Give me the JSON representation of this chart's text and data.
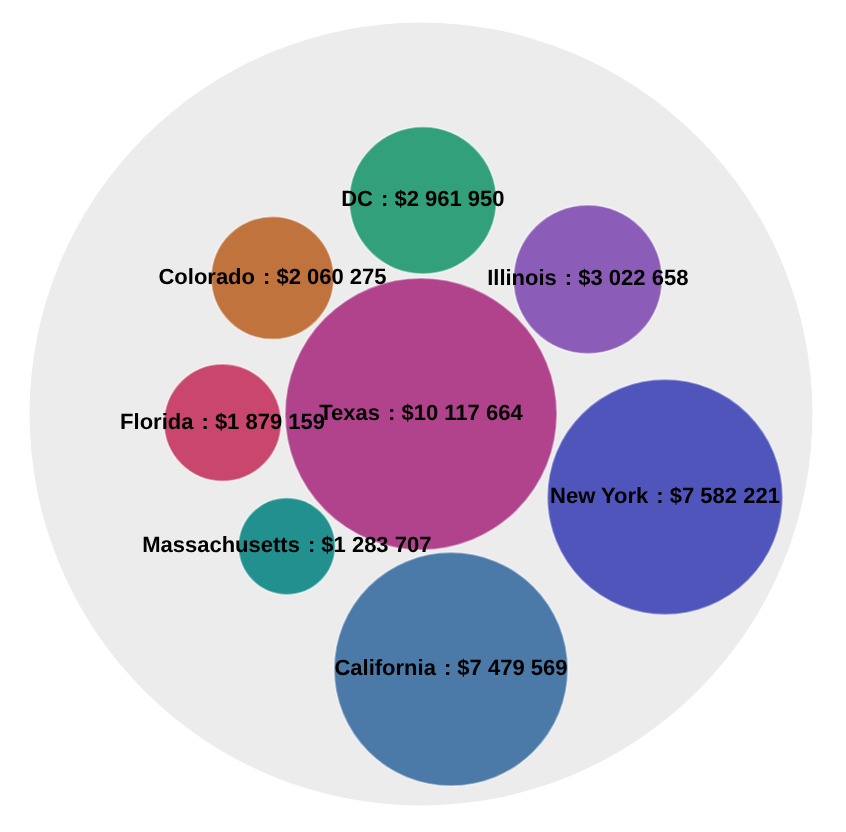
{
  "chart_data": {
    "type": "other",
    "categories": [
      "Texas",
      "DC",
      "Illinois",
      "New York",
      "California",
      "Massachusetts",
      "Florida",
      "Colorado"
    ],
    "values": [
      10117664,
      2961950,
      3022658,
      7582221,
      7479569,
      1283707,
      1879159,
      2060275
    ],
    "value_labels": [
      ": $10 117 664",
      ": $2 961 950",
      ": $3 022 658",
      ": $7 582 221",
      ": $7 479 569",
      ": $1 283 707",
      ": $1 879 159",
      ": $2 060 275"
    ],
    "colors": [
      "#b0438c",
      "#33a07c",
      "#8c5db8",
      "#4f55bb",
      "#4b79a8",
      "#21908f",
      "#c9466c",
      "#c0733c"
    ],
    "data_labels": true
  }
}
